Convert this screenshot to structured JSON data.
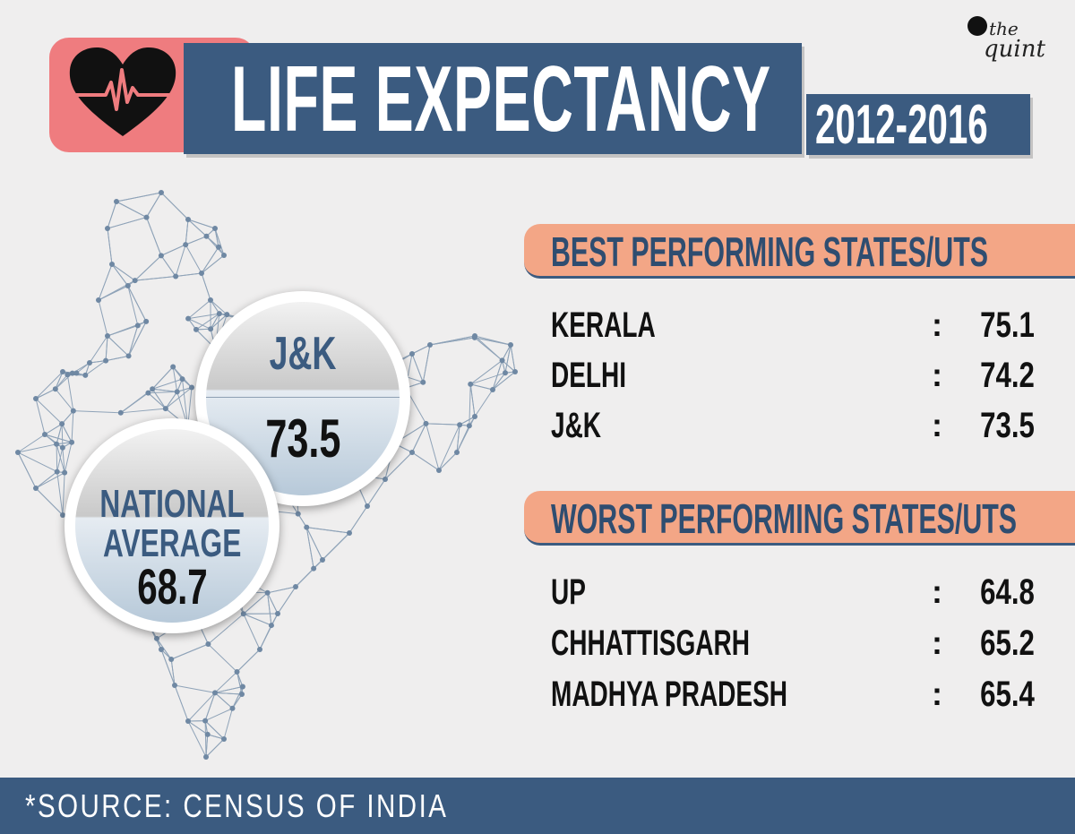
{
  "header": {
    "title": "LIFE EXPECTANCY",
    "year_range": "2012-2016",
    "brand_line1": "the",
    "brand_line2": "quint"
  },
  "highlight": {
    "state_label": "J&K",
    "state_value": "73.5",
    "national_line1": "NATIONAL",
    "national_line2": "AVERAGE",
    "national_value": "68.7"
  },
  "best": {
    "title": "BEST PERFORMING STATES/UTS",
    "rows": [
      {
        "name": "KERALA",
        "sep": ":",
        "value": "75.1"
      },
      {
        "name": "DELHI",
        "sep": ":",
        "value": "74.2"
      },
      {
        "name": "J&K",
        "sep": ":",
        "value": "73.5"
      }
    ]
  },
  "worst": {
    "title": "WORST PERFORMING STATES/UTS",
    "rows": [
      {
        "name": "UP",
        "sep": ":",
        "value": "64.8"
      },
      {
        "name": "CHHATTISGARH",
        "sep": ":",
        "value": "65.2"
      },
      {
        "name": "MADHYA PRADESH",
        "sep": ":",
        "value": "65.4"
      }
    ]
  },
  "footer": {
    "source": "*SOURCE: CENSUS OF INDIA"
  },
  "colors": {
    "navy": "#3b5b80",
    "salmon": "#f3a686",
    "pink": "#ef7c7f",
    "background": "#efeeee"
  },
  "icons": [
    "heart-pulse-icon",
    "india-network-map",
    "speech-bubble-logo-icon"
  ]
}
